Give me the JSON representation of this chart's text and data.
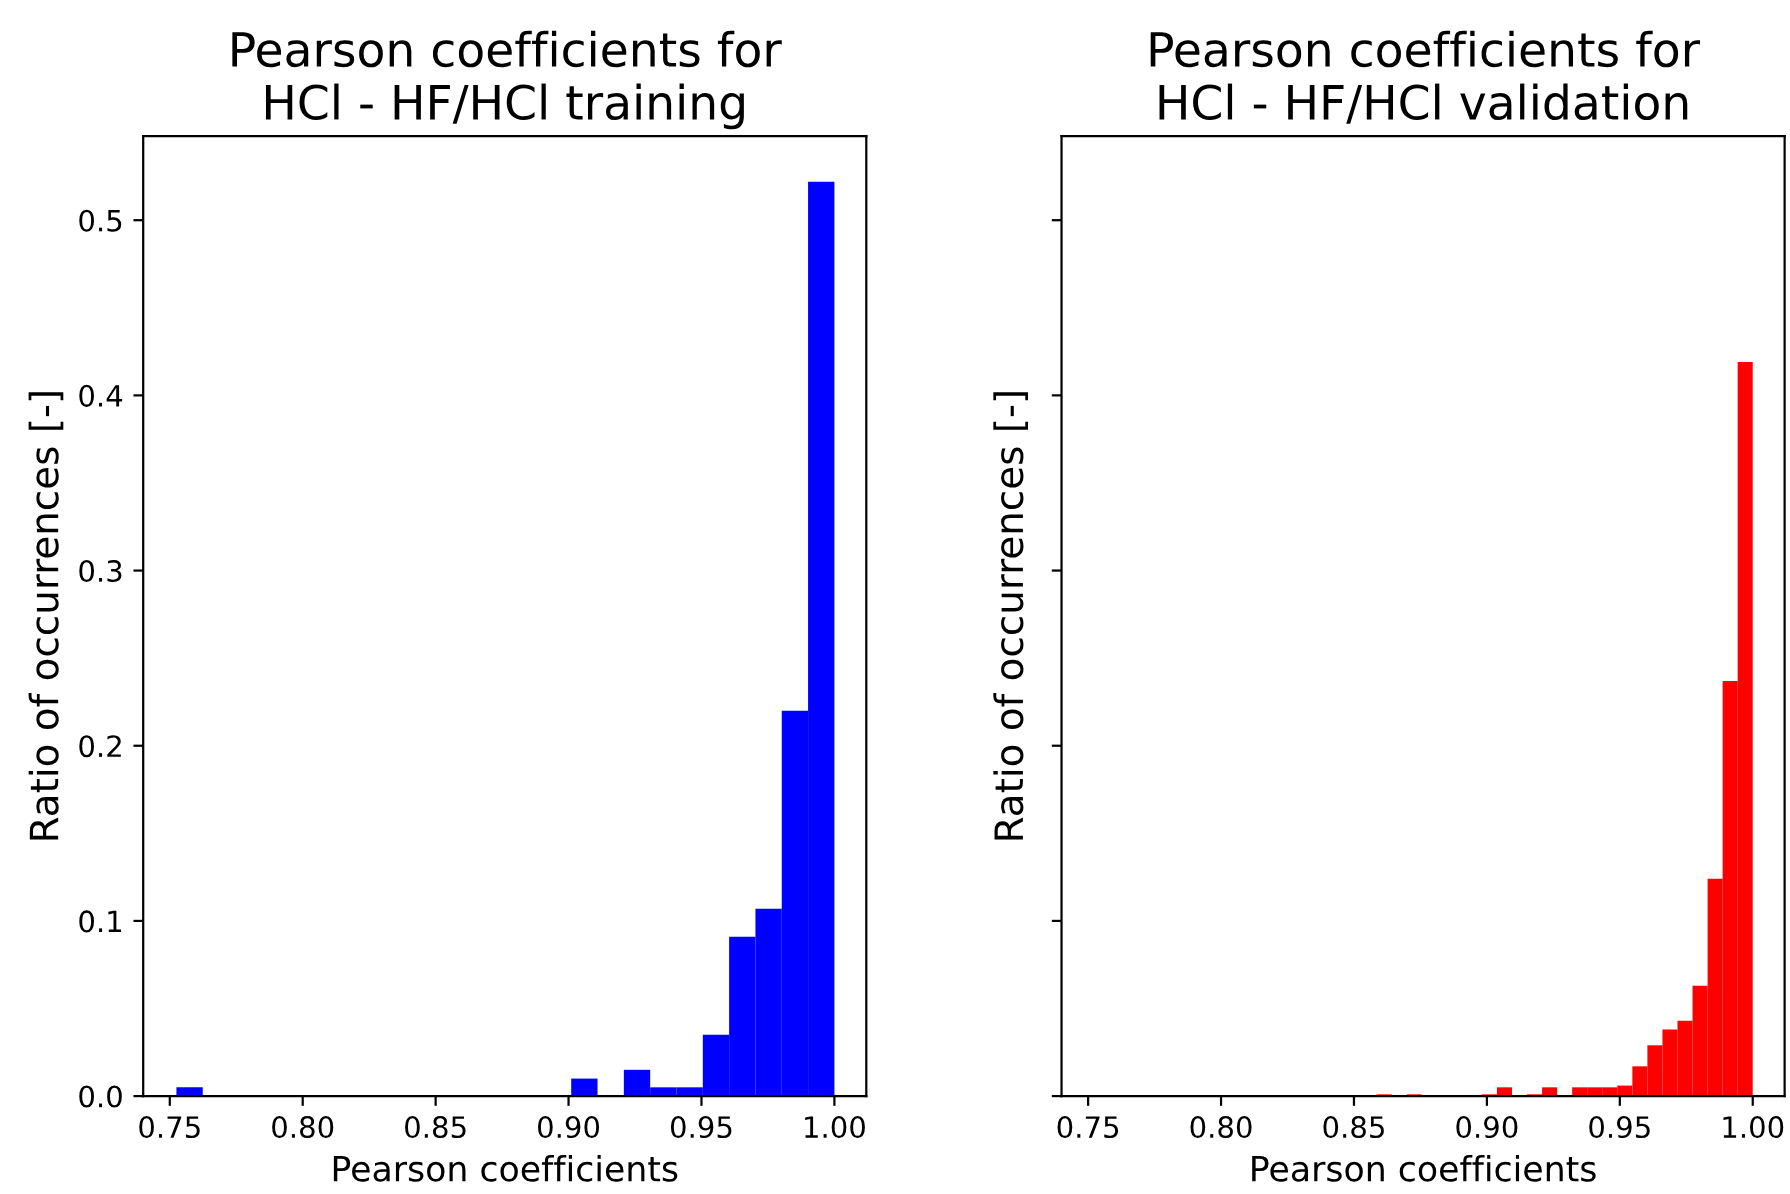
{
  "chart_data": [
    {
      "type": "histogram",
      "title": "Pearson coefficients for\nHCl - HF/HCl training",
      "xlabel": "Pearson coefficients",
      "ylabel": "Ratio of occurrences [-]",
      "bins": [
        0.7525,
        0.7624,
        0.7723,
        0.7822,
        0.7921,
        0.802,
        0.8119,
        0.8218,
        0.8317,
        0.8416,
        0.8515,
        0.8614,
        0.8713,
        0.8812,
        0.8911,
        0.901,
        0.9109,
        0.9208,
        0.9307,
        0.9406,
        0.9505,
        0.9604,
        0.9703,
        0.9802,
        0.9901,
        1.0
      ],
      "values": [
        0.005,
        0,
        0,
        0,
        0,
        0,
        0,
        0,
        0,
        0,
        0,
        0,
        0,
        0,
        0,
        0.01,
        0,
        0.015,
        0.005,
        0.005,
        0.035,
        0.091,
        0.107,
        0.22,
        0.522
      ],
      "color": "#0000ff",
      "xlim": [
        0.74,
        1.012
      ],
      "ylim": [
        0,
        0.548
      ],
      "xticks": [
        0.75,
        {
          "value": 0.8,
          "label": "0.80"
        },
        0.85,
        {
          "value": 0.9,
          "label": "0.90"
        },
        0.95,
        {
          "value": 1.0,
          "label": "1.00"
        }
      ],
      "yticks": [
        {
          "value": 0,
          "label": "0.0"
        },
        0.1,
        0.2,
        0.3,
        0.4,
        0.5
      ]
    },
    {
      "type": "histogram",
      "title": "Pearson coefficients for\nHCl - HF/HCl validation",
      "xlabel": "Pearson coefficients",
      "ylabel": "Ratio of occurrences [-]",
      "bins": [
        0.8585,
        0.86416,
        0.86982,
        0.87548,
        0.88114,
        0.8868,
        0.89246,
        0.89812,
        0.90378,
        0.90944,
        0.9151,
        0.92076,
        0.92642,
        0.93208,
        0.93774,
        0.9434,
        0.94906,
        0.95472,
        0.96038,
        0.96604,
        0.9717,
        0.97736,
        0.98302,
        0.98868,
        0.99434,
        1.0
      ],
      "values": [
        0.001,
        0,
        0.001,
        0,
        0,
        0,
        0,
        0.001,
        0.005,
        0,
        0.001,
        0.005,
        0,
        0.005,
        0.005,
        0.005,
        0.006,
        0.017,
        0.029,
        0.038,
        0.043,
        0.063,
        0.124,
        0.237,
        0.419
      ],
      "color": "#ff0000",
      "xlim": [
        0.74,
        1.012
      ],
      "ylim": [
        0,
        0.548
      ],
      "xticks": [
        0.75,
        {
          "value": 0.8,
          "label": "0.80"
        },
        0.85,
        {
          "value": 0.9,
          "label": "0.90"
        },
        0.95,
        {
          "value": 1.0,
          "label": "1.00"
        }
      ],
      "yticks": [
        0,
        0.1,
        0.2,
        0.3,
        0.4,
        0.5
      ],
      "tick_labels": "x"
    }
  ]
}
